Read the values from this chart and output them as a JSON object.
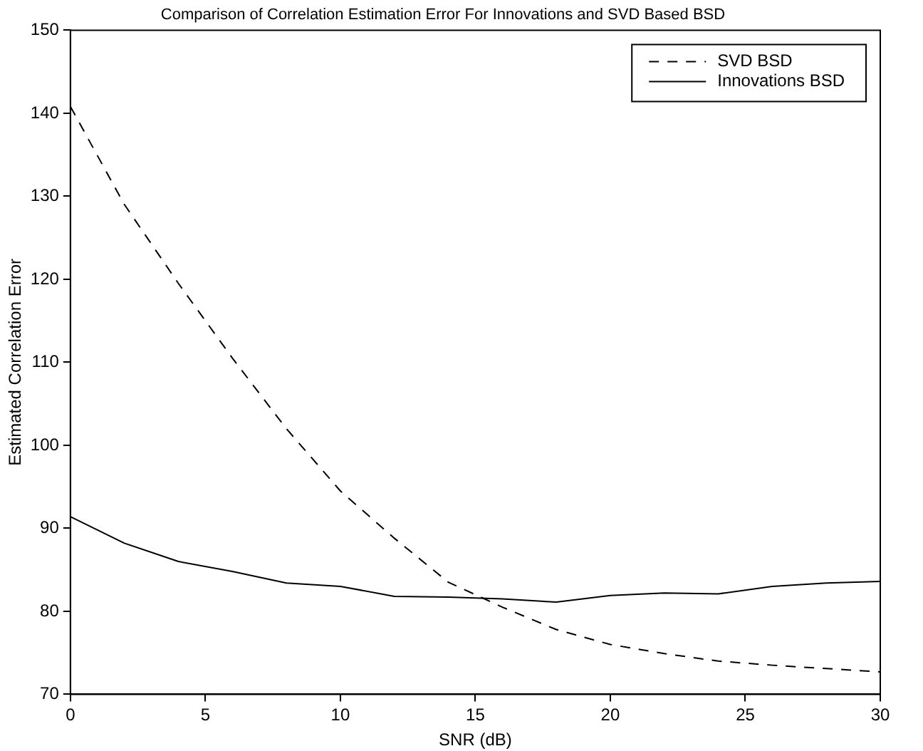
{
  "chart_data": {
    "type": "line",
    "title": "Comparison of Correlation Estimation Error For Innovations and SVD Based BSD",
    "xlabel": "SNR (dB)",
    "ylabel": "Estimated Correlation Error",
    "x": [
      0,
      2,
      4,
      6,
      8,
      10,
      12,
      14,
      16,
      18,
      20,
      22,
      24,
      26,
      28,
      30
    ],
    "series": [
      {
        "name": "SVD BSD",
        "color": "#000000",
        "line_style": "dashed",
        "values": [
          140.8,
          129,
          119.5,
          110.5,
          102,
          94.5,
          88.8,
          83.5,
          80.5,
          77.8,
          76,
          74.9,
          74,
          73.5,
          73.1,
          72.7
        ]
      },
      {
        "name": "Innovations BSD",
        "color": "#000000",
        "line_style": "solid",
        "values": [
          91.4,
          88.2,
          86.0,
          84.8,
          83.4,
          83.0,
          81.8,
          81.7,
          81.5,
          81.1,
          81.9,
          82.2,
          82.1,
          83.0,
          83.4,
          83.6
        ]
      }
    ],
    "xlim": [
      0,
      30
    ],
    "xticks": [
      0,
      5,
      10,
      15,
      20,
      25,
      30
    ],
    "ylim": [
      70,
      150
    ],
    "yticks": [
      70,
      80,
      90,
      100,
      110,
      120,
      130,
      140,
      150
    ],
    "grid": false,
    "legend": "top right",
    "marker": "none"
  }
}
